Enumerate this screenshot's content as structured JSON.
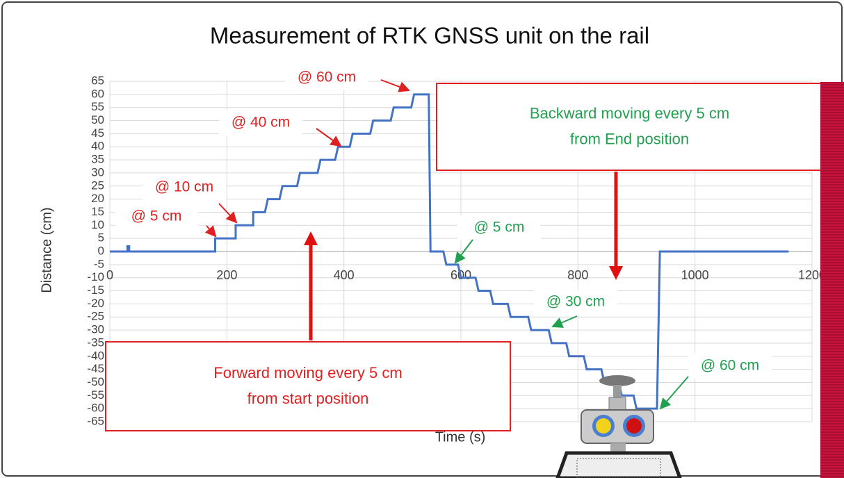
{
  "chart_data": {
    "type": "line",
    "title": "Measurement of RTK GNSS unit on the rail",
    "x_label": "Time (s)",
    "y_label": "Distance (cm)",
    "xlim": [
      0,
      1200
    ],
    "xticks": [
      0,
      200,
      400,
      600,
      800,
      1000,
      1200
    ],
    "ylim": [
      -65,
      65
    ],
    "yticks": [
      65,
      60,
      55,
      50,
      45,
      40,
      35,
      30,
      25,
      20,
      15,
      10,
      5,
      0,
      -5,
      -10,
      -15,
      -20,
      -25,
      -30,
      -35,
      -40,
      -45,
      -50,
      -55,
      -60,
      -65
    ],
    "grid": true,
    "series": [
      {
        "color": "#4472c4",
        "x": [
          0,
          30,
          30,
          33,
          33,
          180,
          180,
          215,
          215,
          245,
          245,
          265,
          270,
          290,
          295,
          320,
          325,
          355,
          360,
          385,
          390,
          410,
          415,
          445,
          450,
          480,
          485,
          515,
          520,
          545,
          548,
          570,
          575,
          595,
          600,
          625,
          630,
          650,
          655,
          680,
          685,
          715,
          720,
          750,
          755,
          780,
          785,
          810,
          815,
          840,
          845,
          870,
          875,
          895,
          900,
          935,
          940,
          1160
        ],
        "values": [
          0,
          0,
          2,
          2,
          0,
          0,
          5,
          5,
          10,
          10,
          15,
          15,
          20,
          20,
          25,
          25,
          30,
          30,
          35,
          35,
          40,
          40,
          45,
          45,
          50,
          50,
          55,
          55,
          60,
          60,
          0,
          0,
          -5,
          -5,
          -10,
          -10,
          -15,
          -15,
          -20,
          -20,
          -25,
          -25,
          -30,
          -30,
          -35,
          -35,
          -40,
          -40,
          -45,
          -45,
          -50,
          -50,
          -55,
          -55,
          -60,
          -60,
          0,
          0
        ]
      }
    ],
    "annotations": [
      {
        "text": "@ 60 cm",
        "color": "#e02020"
      },
      {
        "text": "@ 40 cm",
        "color": "#e02020"
      },
      {
        "text": "@ 10 cm",
        "color": "#e02020"
      },
      {
        "text": "@ 5 cm",
        "color": "#e02020"
      },
      {
        "text": "@ 5 cm",
        "color": "#22a050"
      },
      {
        "text": "@ 30 cm",
        "color": "#22a050"
      },
      {
        "text": "@ 60 cm",
        "color": "#22a050"
      }
    ],
    "boxes": [
      {
        "lines": [
          "Backward moving every 5 cm",
          "from End position"
        ],
        "color": "#22a050"
      },
      {
        "lines": [
          "Forward moving every 5 cm",
          "from start position"
        ],
        "color": "#e02020"
      }
    ]
  }
}
